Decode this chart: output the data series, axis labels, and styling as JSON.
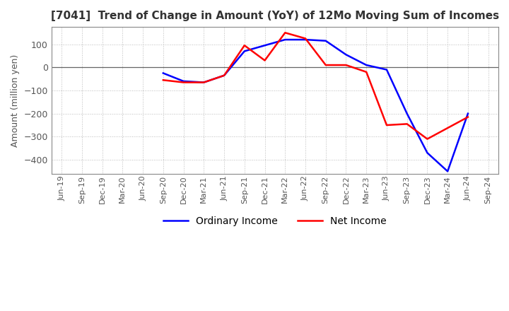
{
  "title": "[7041]  Trend of Change in Amount (YoY) of 12Mo Moving Sum of Incomes",
  "ylabel": "Amount (million yen)",
  "x_labels": [
    "Jun-19",
    "Sep-19",
    "Dec-19",
    "Mar-20",
    "Jun-20",
    "Sep-20",
    "Dec-20",
    "Mar-21",
    "Jun-21",
    "Sep-21",
    "Dec-21",
    "Mar-22",
    "Jun-22",
    "Sep-22",
    "Dec-22",
    "Mar-23",
    "Jun-23",
    "Sep-23",
    "Dec-23",
    "Mar-24",
    "Jun-24",
    "Sep-24"
  ],
  "ordinary_income": [
    null,
    null,
    null,
    null,
    null,
    -25,
    -60,
    -65,
    -35,
    70,
    95,
    120,
    120,
    115,
    55,
    10,
    -10,
    -200,
    -370,
    -450,
    -200,
    null
  ],
  "net_income": [
    null,
    null,
    null,
    null,
    null,
    -55,
    -65,
    -65,
    -35,
    95,
    30,
    150,
    125,
    10,
    10,
    -20,
    -250,
    -245,
    -310,
    null,
    -215,
    null
  ],
  "ordinary_color": "#0000ff",
  "net_color": "#ff0000",
  "ylim_min": -460,
  "ylim_max": 175,
  "yticks": [
    100,
    0,
    -100,
    -200,
    -300,
    -400
  ],
  "background_color": "#ffffff",
  "grid_color": "#bbbbbb",
  "border_color": "#888888"
}
